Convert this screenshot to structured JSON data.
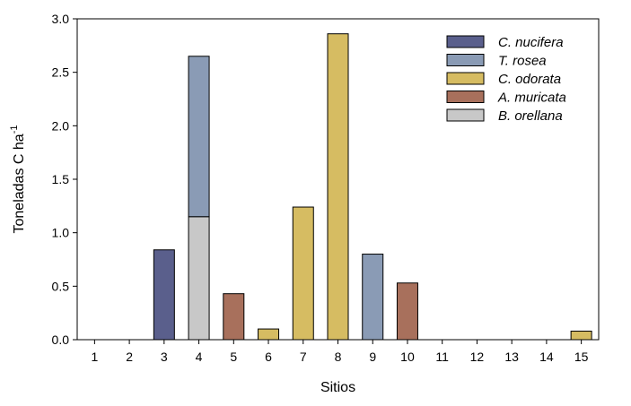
{
  "chart_data": {
    "type": "bar",
    "stacked": true,
    "title": "",
    "xlabel": "Sitios",
    "ylabel": {
      "base": "Toneladas C ha",
      "sup": "-1"
    },
    "ylim": [
      0,
      3.0
    ],
    "yticks": [
      "0.0",
      "0.5",
      "1.0",
      "1.5",
      "2.0",
      "2.5",
      "3.0"
    ],
    "grid": false,
    "legend_position": "top-right",
    "categories": [
      "1",
      "2",
      "3",
      "4",
      "5",
      "6",
      "7",
      "8",
      "9",
      "10",
      "11",
      "12",
      "13",
      "14",
      "15"
    ],
    "series": [
      {
        "name": "B. orellana",
        "color": "#c8c8c8",
        "values": [
          0,
          0,
          0,
          1.15,
          0,
          0,
          0,
          0,
          0,
          0,
          0,
          0,
          0,
          0,
          0
        ]
      },
      {
        "name": "C. nucifera",
        "color": "#5a5f8c",
        "values": [
          0,
          0,
          0.84,
          0,
          0,
          0,
          0,
          0,
          0,
          0,
          0,
          0,
          0,
          0,
          0
        ]
      },
      {
        "name": "T. rosea",
        "color": "#8a9bb5",
        "values": [
          0,
          0,
          0,
          1.5,
          0,
          0,
          0,
          0,
          0.8,
          0,
          0,
          0,
          0,
          0,
          0
        ]
      },
      {
        "name": "C. odorata",
        "color": "#d6bc62",
        "values": [
          0,
          0,
          0,
          0,
          0,
          0.1,
          1.24,
          2.86,
          0,
          0,
          0,
          0,
          0,
          0,
          0.08
        ]
      },
      {
        "name": "A. muricata",
        "color": "#a8705c",
        "values": [
          0,
          0,
          0,
          0,
          0.43,
          0,
          0,
          0,
          0,
          0.53,
          0,
          0,
          0,
          0,
          0
        ]
      }
    ],
    "legend_order": [
      "C. nucifera",
      "T. rosea",
      "C. odorata",
      "A. muricata",
      "B. orellana"
    ]
  }
}
